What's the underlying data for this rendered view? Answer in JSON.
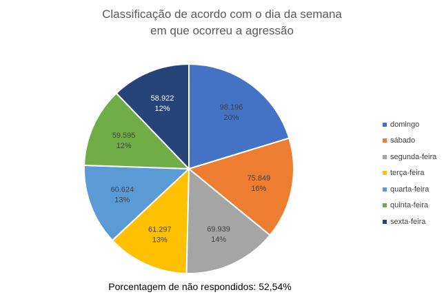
{
  "chart_data": {
    "type": "pie",
    "title_lines": [
      "Classificação de acordo com o dia da semana",
      "em que ocorreu a agressão"
    ],
    "categories": [
      "domingo",
      "sábado",
      "segunda-feira",
      "terça-feira",
      "quarta-feira",
      "quinta-feira",
      "sexta-feira"
    ],
    "values": [
      98196,
      75849,
      69939,
      61297,
      60624,
      59595,
      58922
    ],
    "value_labels": [
      "98.196",
      "75.849",
      "69.939",
      "61.297",
      "60.624",
      "59.595",
      "58.922"
    ],
    "percent_labels": [
      "20%",
      "16%",
      "14%",
      "13%",
      "13%",
      "12%",
      "12%"
    ],
    "colors": [
      "#4472C4",
      "#ED7D31",
      "#A5A5A5",
      "#FFC000",
      "#5B9BD5",
      "#70AD47",
      "#264478"
    ],
    "label_colors": [
      "#404040",
      "#404040",
      "#404040",
      "#404040",
      "#404040",
      "#404040",
      "#ffffff"
    ],
    "legend_position": "right",
    "footnote": "Porcentagem de não respondidos: 52,54%"
  }
}
